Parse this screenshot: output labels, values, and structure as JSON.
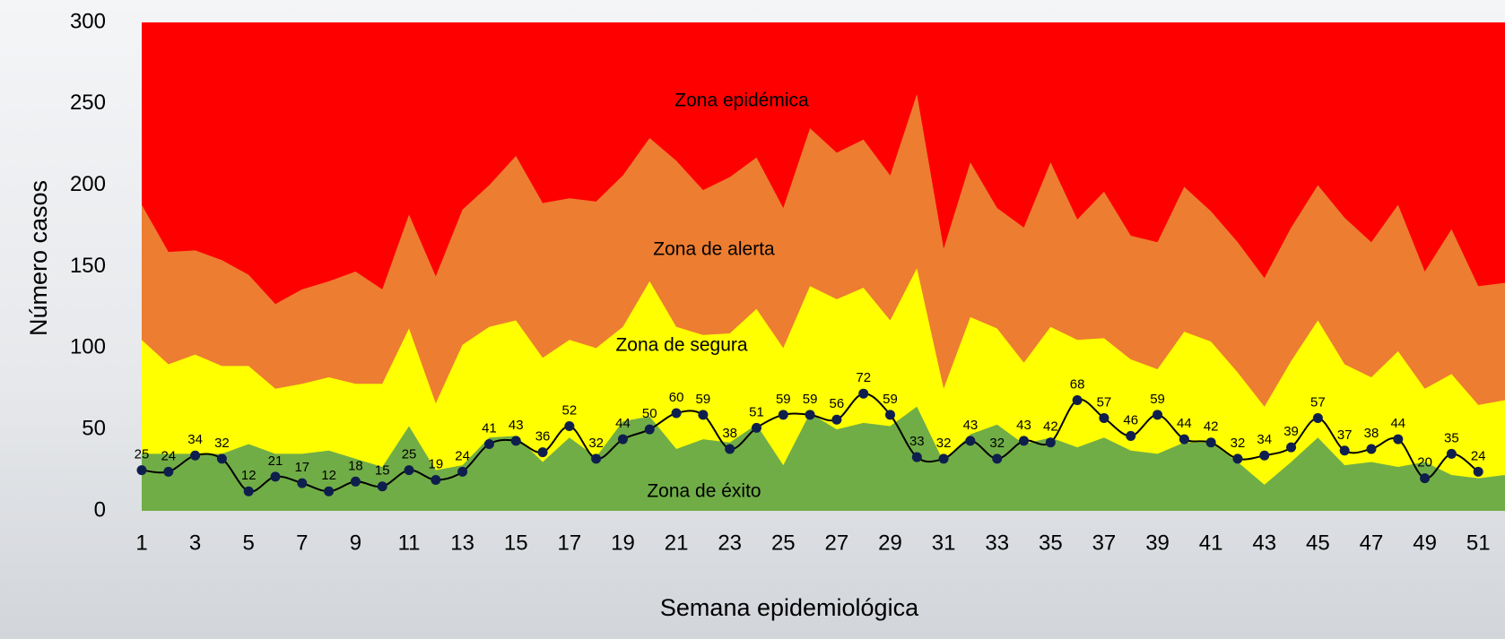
{
  "chart_data": {
    "type": "area",
    "x_label": "Semana epidemiológica",
    "y_label": "Número casos",
    "categories": [
      "1",
      null,
      "3",
      null,
      "5",
      null,
      "7",
      null,
      "9",
      null,
      "11",
      null,
      "13",
      null,
      "15",
      null,
      "17",
      null,
      "19",
      null,
      "21",
      null,
      "23",
      null,
      "25",
      null,
      "27",
      null,
      "29",
      null,
      "31",
      null,
      "33",
      null,
      "35",
      null,
      "37",
      null,
      "39",
      null,
      "41",
      null,
      "43",
      null,
      "45",
      null,
      "47",
      null,
      "49",
      null,
      "51",
      null
    ],
    "ylim": [
      0,
      300
    ],
    "yticks": [
      0,
      50,
      100,
      150,
      200,
      250,
      300
    ],
    "series": [
      {
        "name": "Zona epidémica",
        "color": "#ff0000",
        "values": [
          300,
          300,
          300,
          300,
          300,
          300,
          300,
          300,
          300,
          300,
          300,
          300,
          300,
          300,
          300,
          300,
          300,
          300,
          300,
          300,
          300,
          300,
          300,
          300,
          300,
          300,
          300,
          300,
          300,
          300,
          300,
          300,
          300,
          300,
          300,
          300,
          300,
          300,
          300,
          300,
          300,
          300,
          300,
          300,
          300,
          300,
          300,
          300,
          300,
          300,
          300,
          300
        ]
      },
      {
        "name": "Zona de alerta",
        "color": "#ed7d31",
        "values": [
          188,
          159,
          160,
          154,
          145,
          127,
          136,
          141,
          147,
          136,
          182,
          144,
          185,
          200,
          218,
          189,
          192,
          190,
          206,
          229,
          215,
          197,
          205,
          217,
          186,
          235,
          220,
          228,
          206,
          256,
          161,
          214,
          186,
          174,
          214,
          179,
          196,
          169,
          165,
          199,
          184,
          165,
          143,
          174,
          200,
          180,
          165,
          188,
          147,
          173,
          138,
          140
        ]
      },
      {
        "name": "Zona de segura",
        "color": "#ffff00",
        "values": [
          105,
          90,
          96,
          89,
          89,
          75,
          78,
          82,
          78,
          78,
          112,
          66,
          102,
          113,
          117,
          94,
          105,
          100,
          113,
          141,
          113,
          108,
          109,
          124,
          100,
          138,
          130,
          137,
          117,
          149,
          75,
          119,
          112,
          91,
          113,
          105,
          106,
          93,
          87,
          110,
          104,
          85,
          64,
          92,
          117,
          90,
          82,
          98,
          75,
          84,
          65,
          68
        ]
      },
      {
        "name": "Zona de éxito",
        "color": "#70ad47",
        "values": [
          35,
          35,
          35,
          35,
          41,
          35,
          35,
          37,
          32,
          27,
          52,
          25,
          28,
          45,
          46,
          30,
          45,
          33,
          55,
          58,
          38,
          44,
          42,
          53,
          28,
          60,
          50,
          54,
          52,
          64,
          30,
          47,
          53,
          41,
          45,
          39,
          45,
          37,
          35,
          42,
          42,
          30,
          16,
          30,
          45,
          28,
          30,
          27,
          30,
          22,
          20,
          22
        ]
      },
      {
        "type": "line",
        "color": "#000000",
        "marker_color": "#0f1f4d",
        "values": [
          25,
          24,
          34,
          32,
          12,
          21,
          17,
          12,
          18,
          15,
          25,
          19,
          24,
          41,
          43,
          36,
          52,
          32,
          44,
          50,
          60,
          59,
          38,
          51,
          59,
          59,
          56,
          72,
          59,
          33,
          32,
          43,
          32,
          43,
          42,
          68,
          57,
          46,
          59,
          44,
          42,
          32,
          34,
          39,
          57,
          37,
          38,
          44,
          20,
          35,
          24,
          null
        ]
      }
    ]
  }
}
